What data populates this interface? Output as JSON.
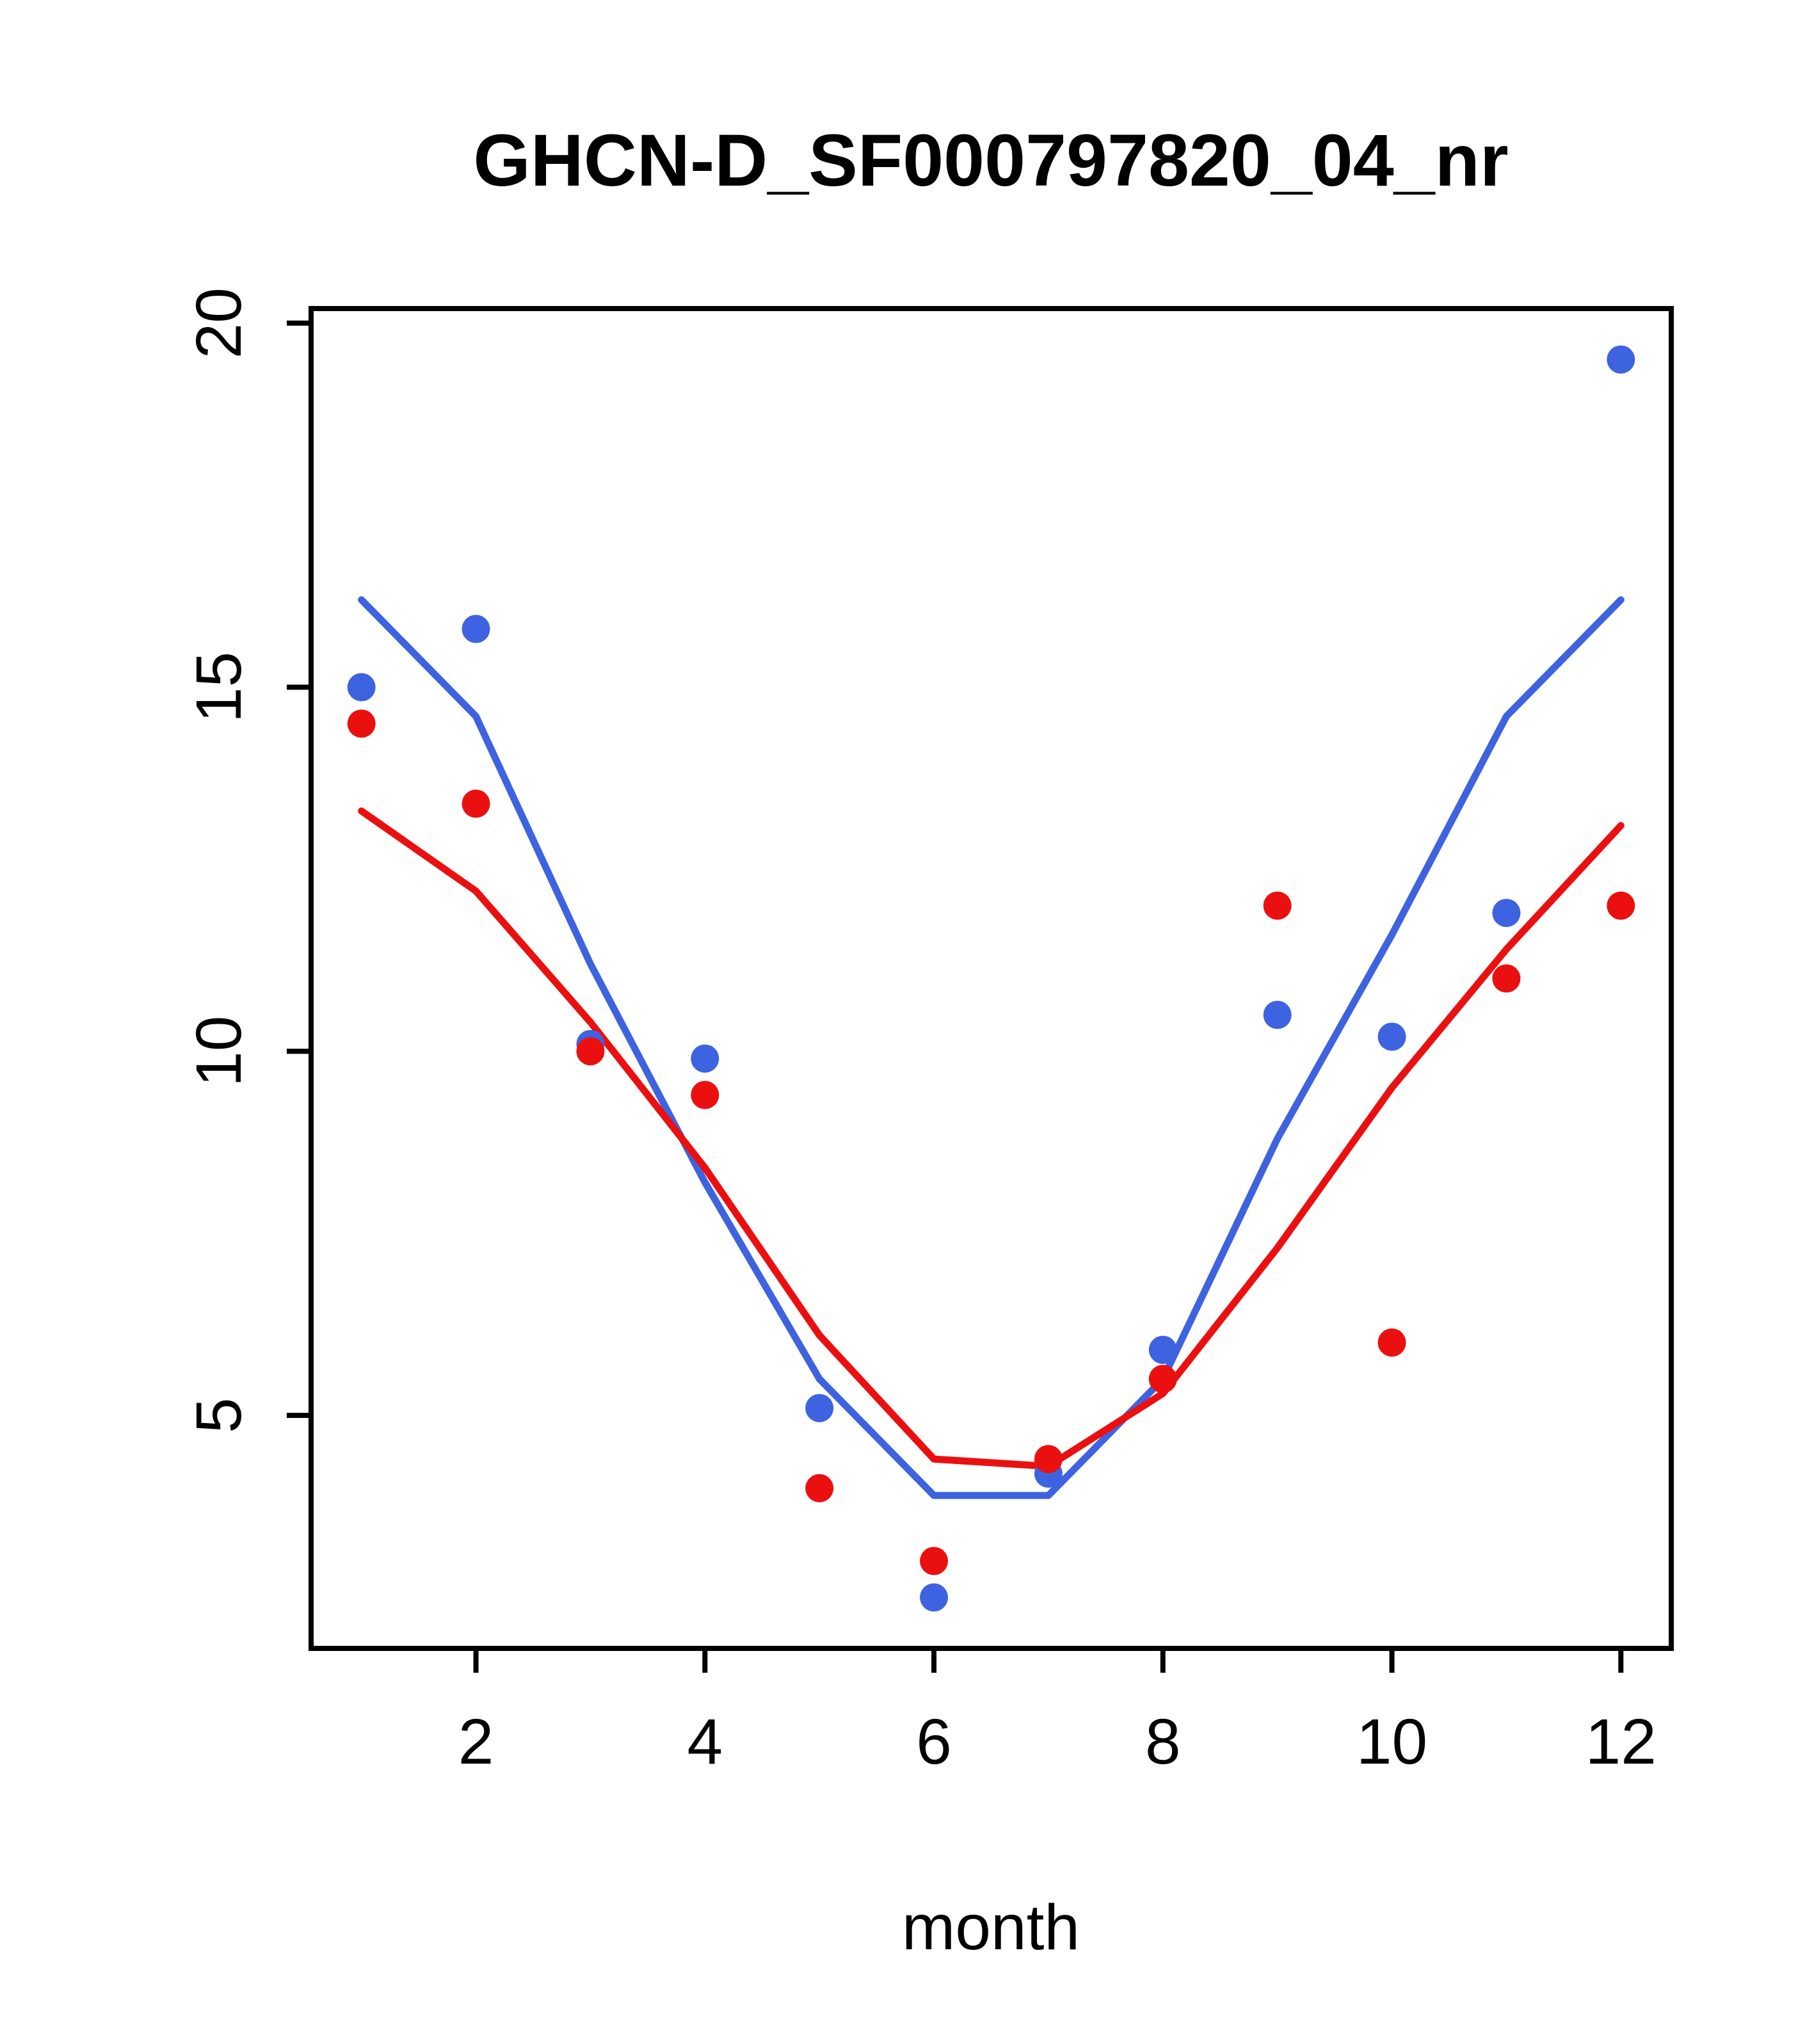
{
  "chart_data": {
    "type": "line",
    "title": "GHCN-D_SF000797820_04_nr",
    "xlabel": "month",
    "ylabel": "",
    "x": [
      1,
      2,
      3,
      4,
      5,
      6,
      7,
      8,
      9,
      10,
      11,
      12
    ],
    "xlim": [
      0.56,
      12.44
    ],
    "ylim": [
      1.8,
      20.2
    ],
    "x_ticks": [
      2,
      4,
      6,
      8,
      10,
      12
    ],
    "y_ticks": [
      5,
      10,
      15,
      20
    ],
    "grid": false,
    "legend": "none",
    "colors": {
      "blue": "#3E63E0",
      "red": "#EB1010"
    },
    "series": [
      {
        "name": "blue-line",
        "type": "line",
        "color": "blue",
        "values": [
          16.2,
          14.6,
          11.2,
          8.2,
          5.5,
          3.9,
          3.9,
          5.5,
          8.8,
          11.6,
          14.6,
          16.2
        ]
      },
      {
        "name": "red-line",
        "type": "line",
        "color": "red",
        "values": [
          13.3,
          12.2,
          10.4,
          8.4,
          6.1,
          4.4,
          4.3,
          5.3,
          7.3,
          9.5,
          11.4,
          13.1
        ]
      },
      {
        "name": "blue-points",
        "type": "points",
        "color": "blue",
        "values": [
          15.0,
          15.8,
          10.1,
          9.9,
          5.1,
          2.5,
          4.2,
          5.9,
          10.5,
          10.2,
          11.9,
          19.5
        ]
      },
      {
        "name": "red-points",
        "type": "points",
        "color": "red",
        "values": [
          14.5,
          13.4,
          10.0,
          9.4,
          4.0,
          3.0,
          4.4,
          5.5,
          12.0,
          6.0,
          11.0,
          12.0
        ]
      }
    ]
  }
}
